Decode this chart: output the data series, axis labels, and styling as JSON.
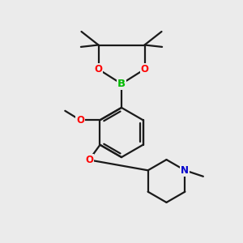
{
  "bg_color": "#ebebeb",
  "bond_color": "#1a1a1a",
  "atom_colors": {
    "O": "#ff0000",
    "B": "#00bb00",
    "N": "#0000cc"
  },
  "line_width": 1.6,
  "font_size": 8.5
}
